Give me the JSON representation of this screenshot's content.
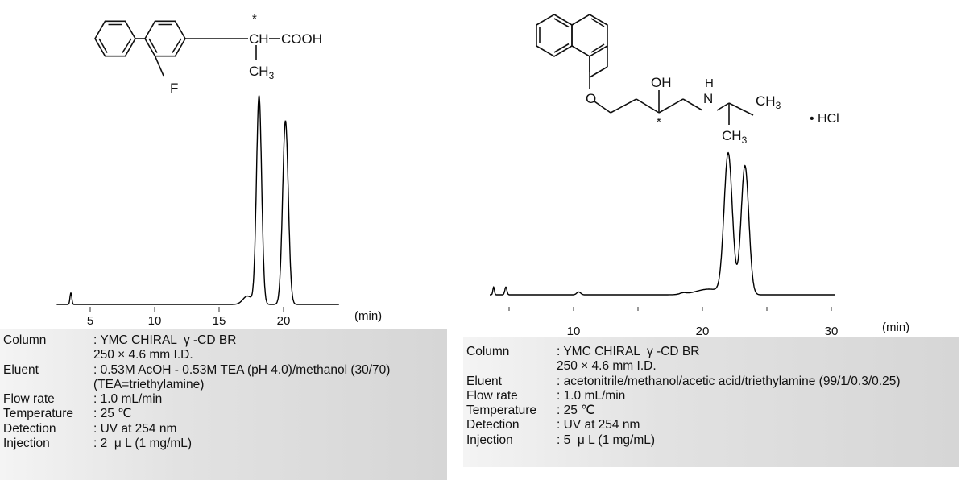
{
  "structure_left": {
    "asterisk": "*",
    "ch": "CH",
    "cooh": "COOH",
    "ch3": "CH",
    "ch3_sub": "3",
    "f": "F"
  },
  "structure_right": {
    "oh": "OH",
    "asterisk": "*",
    "n": "N",
    "h": "H",
    "o": "O",
    "ch3a": "CH",
    "ch3a_sub": "3",
    "ch3b": "CH",
    "ch3b_sub": "3",
    "hcl": "• HCl"
  },
  "chart_data": [
    {
      "type": "line",
      "xlabel": "(min)",
      "xlim": [
        2.4,
        24.3
      ],
      "xticks": [
        5,
        10,
        15,
        20
      ],
      "xtick_labels": [
        "5",
        "10",
        "15",
        "20"
      ],
      "grid": false,
      "peaks": [
        {
          "time": 3.5,
          "height": 5.5,
          "width": 0.07
        },
        {
          "time": 17.2,
          "height": 4,
          "width": 0.35
        },
        {
          "time": 18.1,
          "height": 100,
          "width": 0.2
        },
        {
          "time": 20.15,
          "height": 88,
          "width": 0.22
        }
      ],
      "color": "#000000"
    },
    {
      "type": "line",
      "xlabel": "(min)",
      "xlim": [
        3.5,
        30.3
      ],
      "xticks": [
        5,
        10,
        15,
        20,
        25,
        30
      ],
      "xtick_labels": [
        "",
        "10",
        "",
        "20",
        "",
        "30"
      ],
      "grid": false,
      "peaks": [
        {
          "time": 3.8,
          "height": 5.5,
          "width": 0.06
        },
        {
          "time": 4.75,
          "height": 5.5,
          "width": 0.08
        },
        {
          "time": 10.4,
          "height": 2,
          "width": 0.15
        },
        {
          "time": 18.5,
          "height": 1,
          "width": 0.25
        },
        {
          "time": 20.5,
          "height": 4,
          "width": 1.0
        },
        {
          "time": 22.0,
          "height": 100,
          "width": 0.32
        },
        {
          "time": 23.3,
          "height": 92,
          "width": 0.3
        }
      ],
      "color": "#000000"
    }
  ],
  "conditions_left": [
    {
      "label": "Column",
      "value": ": YMC CHIRAL  γ -CD BR",
      "extra": "250 × 4.6 mm I.D."
    },
    {
      "label": "Eluent",
      "value": ": 0.53M AcOH - 0.53M TEA (pH 4.0)/methanol (30/70)",
      "extra": "(TEA=triethylamine)"
    },
    {
      "label": "Flow rate",
      "value": ": 1.0 mL/min"
    },
    {
      "label": "Temperature",
      "value": ": 25 ℃"
    },
    {
      "label": "Detection",
      "value": ": UV at 254 nm"
    },
    {
      "label": "Injection",
      "value": ": 2  μ L (1 mg/mL)"
    }
  ],
  "conditions_right": [
    {
      "label": "Column",
      "value": ": YMC CHIRAL  γ -CD BR",
      "extra": "250 × 4.6 mm I.D."
    },
    {
      "label": "Eluent",
      "value": ": acetonitrile/methanol/acetic acid/triethylamine (99/1/0.3/0.25)"
    },
    {
      "label": "Flow rate",
      "value": ": 1.0 mL/min"
    },
    {
      "label": "Temperature",
      "value": ": 25 ℃"
    },
    {
      "label": "Detection",
      "value": ": UV at 254 nm"
    },
    {
      "label": "Injection",
      "value": ": 5  μ L (1 mg/mL)"
    }
  ]
}
